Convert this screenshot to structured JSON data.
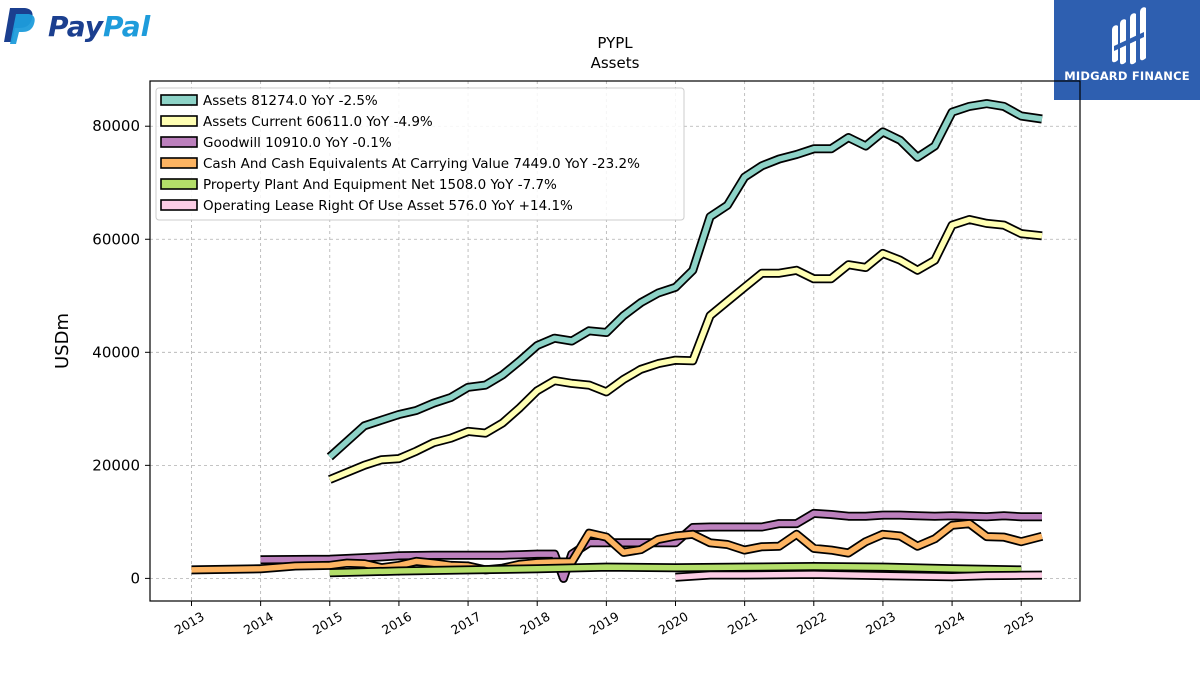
{
  "branding": {
    "left_logo": "PayPal",
    "right_logo": "MIDGARD FINANCE",
    "colors": {
      "paypal_dark": "#1b3f8f",
      "paypal_light": "#1e9cdb",
      "midgard_bg": "#2e5fb0"
    }
  },
  "chart_data": {
    "type": "line",
    "title": "PYPL",
    "subtitle": "Assets",
    "ylabel": "USDm",
    "xlabel": "",
    "xlim": [
      2012.4,
      2025.85
    ],
    "ylim": [
      -4000,
      88000
    ],
    "grid": true,
    "legend_position": "top-left",
    "x_ticks": [
      2013,
      2014,
      2015,
      2016,
      2017,
      2018,
      2019,
      2020,
      2021,
      2022,
      2023,
      2024,
      2025
    ],
    "x_tick_labels": [
      "2013",
      "2014",
      "2015",
      "2016",
      "2017",
      "2018",
      "2019",
      "2020",
      "2021",
      "2022",
      "2023",
      "2024",
      "2025"
    ],
    "y_ticks": [
      0,
      20000,
      40000,
      60000,
      80000
    ],
    "y_tick_labels": [
      "0",
      "20000",
      "40000",
      "60000",
      "80000"
    ],
    "series": [
      {
        "name": "Assets  81274.0 YoY -2.5%",
        "color": "#8dd3c7",
        "x": [
          2015.0,
          2015.5,
          2015.75,
          2016.0,
          2016.25,
          2016.5,
          2016.75,
          2017.0,
          2017.25,
          2017.5,
          2017.75,
          2018.0,
          2018.25,
          2018.5,
          2018.75,
          2019.0,
          2019.25,
          2019.5,
          2019.75,
          2020.0,
          2020.25,
          2020.5,
          2020.75,
          2021.0,
          2021.25,
          2021.5,
          2021.75,
          2022.0,
          2022.25,
          2022.5,
          2022.75,
          2023.0,
          2023.25,
          2023.5,
          2023.75,
          2024.0,
          2024.25,
          2024.5,
          2024.75,
          2025.0,
          2025.3
        ],
        "y": [
          21500,
          27000,
          28000,
          29000,
          29700,
          31000,
          32000,
          33800,
          34200,
          36000,
          38500,
          41200,
          42500,
          42000,
          43800,
          43500,
          46500,
          48800,
          50500,
          51500,
          54500,
          64000,
          66000,
          71000,
          73000,
          74200,
          75000,
          76000,
          76000,
          78000,
          76500,
          79000,
          77500,
          74500,
          76500,
          82500,
          83500,
          84000,
          83500,
          81800,
          81274
        ]
      },
      {
        "name": "Assets Current  60611.0 YoY -4.9%",
        "color": "#ffffb3",
        "x": [
          2015.0,
          2015.5,
          2015.75,
          2016.0,
          2016.25,
          2016.5,
          2016.75,
          2017.0,
          2017.25,
          2017.5,
          2017.75,
          2018.0,
          2018.25,
          2018.5,
          2018.75,
          2019.0,
          2019.25,
          2019.5,
          2019.75,
          2020.0,
          2020.25,
          2020.5,
          2020.75,
          2021.0,
          2021.25,
          2021.5,
          2021.75,
          2022.0,
          2022.25,
          2022.5,
          2022.75,
          2023.0,
          2023.25,
          2023.5,
          2023.75,
          2024.0,
          2024.25,
          2024.5,
          2024.75,
          2025.0,
          2025.3
        ],
        "y": [
          17500,
          20000,
          21000,
          21200,
          22500,
          24000,
          24800,
          26000,
          25700,
          27500,
          30200,
          33200,
          35000,
          34500,
          34200,
          33000,
          35200,
          37000,
          38000,
          38600,
          38500,
          46500,
          49000,
          51500,
          54000,
          54000,
          54500,
          53000,
          53000,
          55500,
          55000,
          57500,
          56300,
          54500,
          56300,
          62500,
          63500,
          62800,
          62500,
          61000,
          60611
        ]
      },
      {
        "name": "Goodwill  10910.0 YoY -0.1%",
        "color": "#bc80bd",
        "x": [
          2014.0,
          2015.0,
          2015.75,
          2016.0,
          2016.5,
          2017.0,
          2017.5,
          2017.75,
          2018.0,
          2018.25,
          2018.38,
          2018.5,
          2018.75,
          2019.0,
          2019.5,
          2020.0,
          2020.25,
          2020.5,
          2021.0,
          2021.25,
          2021.5,
          2021.75,
          2022.0,
          2022.25,
          2022.5,
          2022.75,
          2023.0,
          2023.25,
          2023.5,
          2023.75,
          2024.0,
          2024.25,
          2024.5,
          2024.75,
          2025.0,
          2025.3
        ],
        "y": [
          3300,
          3400,
          3800,
          4000,
          4100,
          4100,
          4100,
          4200,
          4300,
          4300,
          0,
          4300,
          6300,
          6300,
          6300,
          6300,
          9000,
          9100,
          9100,
          9100,
          9700,
          9700,
          11500,
          11300,
          11000,
          11000,
          11200,
          11200,
          11100,
          11000,
          11100,
          11000,
          10900,
          11100,
          10900,
          10910
        ]
      },
      {
        "name": "Cash And Cash Equivalents At Carrying Value  7449.0 YoY -23.2%",
        "color": "#fdb462",
        "x": [
          2013.0,
          2014.0,
          2014.5,
          2015.0,
          2015.25,
          2015.5,
          2015.75,
          2016.0,
          2016.25,
          2016.5,
          2016.75,
          2017.0,
          2017.25,
          2017.5,
          2017.75,
          2018.0,
          2018.25,
          2018.5,
          2018.75,
          2019.0,
          2019.25,
          2019.5,
          2019.75,
          2020.0,
          2020.25,
          2020.5,
          2020.75,
          2021.0,
          2021.25,
          2021.5,
          2021.75,
          2022.0,
          2022.25,
          2022.5,
          2022.75,
          2023.0,
          2023.25,
          2023.5,
          2023.75,
          2024.0,
          2024.25,
          2024.5,
          2024.75,
          2025.0,
          2025.3
        ],
        "y": [
          1500,
          1700,
          2200,
          2300,
          2700,
          2600,
          1900,
          2300,
          3000,
          2700,
          2300,
          2200,
          1500,
          1800,
          2500,
          2800,
          2900,
          2900,
          8000,
          7300,
          4600,
          5100,
          6900,
          7500,
          7800,
          6300,
          6000,
          5000,
          5600,
          5700,
          7800,
          5300,
          5000,
          4500,
          6500,
          7800,
          7500,
          5700,
          7000,
          9400,
          9700,
          7400,
          7300,
          6500,
          7449
        ]
      },
      {
        "name": "Property Plant And Equipment Net  1508.0 YoY -7.7%",
        "color": "#b3de69",
        "x": [
          2015.0,
          2016.0,
          2017.0,
          2018.0,
          2019.0,
          2020.0,
          2021.0,
          2022.0,
          2023.0,
          2024.0,
          2025.0
        ],
        "y": [
          1000,
          1300,
          1500,
          1700,
          2000,
          1900,
          2000,
          2100,
          2000,
          1700,
          1500
        ]
      },
      {
        "name": "Operating Lease Right Of Use Asset  576.0 YoY +14.1%",
        "color": "#fccde5",
        "x": [
          2020.0,
          2020.5,
          2021.0,
          2022.0,
          2023.0,
          2024.0,
          2024.5,
          2025.0,
          2025.3
        ],
        "y": [
          200,
          600,
          600,
          700,
          500,
          300,
          500,
          550,
          576
        ]
      }
    ]
  }
}
